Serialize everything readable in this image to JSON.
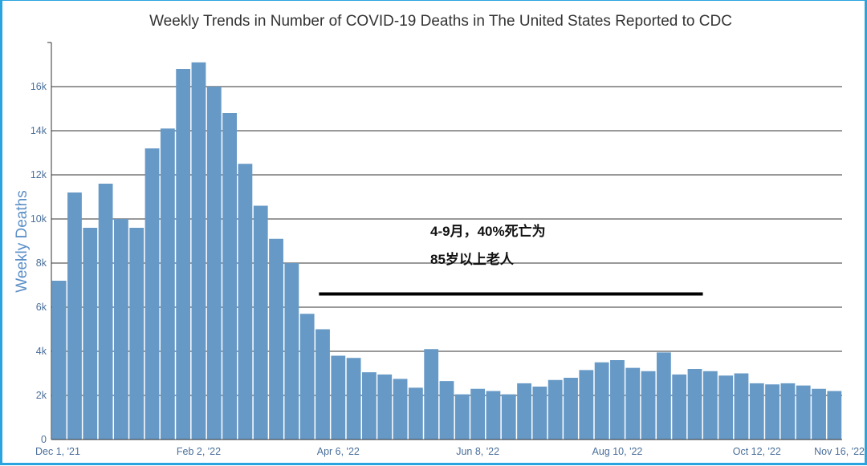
{
  "chart_data": {
    "type": "bar",
    "title": "Weekly Trends in Number of COVID-19 Deaths in The United States Reported to CDC",
    "xlabel": "",
    "ylabel": "Weekly Deaths",
    "ylim": [
      0,
      18000
    ],
    "yticks": [
      0,
      2000,
      4000,
      6000,
      8000,
      10000,
      12000,
      14000,
      16000
    ],
    "ytick_labels": [
      "0",
      "2k",
      "4k",
      "6k",
      "8k",
      "10k",
      "12k",
      "14k",
      "16k"
    ],
    "xtick_labels": [
      {
        "label": "Dec 1, '21",
        "index": 0
      },
      {
        "label": "Feb 2, '22",
        "index": 9
      },
      {
        "label": "Apr 6, '22",
        "index": 18
      },
      {
        "label": "Jun 8, '22",
        "index": 27
      },
      {
        "label": "Aug 10, '22",
        "index": 36
      },
      {
        "label": "Oct 12, '22",
        "index": 45
      },
      {
        "label": "Nov 16, '22",
        "index": 50
      }
    ],
    "bar_color": "#6799c6",
    "grid_color": "#333333",
    "values": [
      7200,
      11200,
      9600,
      11600,
      10000,
      9600,
      13200,
      14100,
      16800,
      17100,
      16000,
      14800,
      12500,
      10600,
      9100,
      8000,
      5700,
      5000,
      3800,
      3700,
      3050,
      2950,
      2750,
      2350,
      4100,
      2650,
      2050,
      2300,
      2200,
      2050,
      2550,
      2400,
      2700,
      2800,
      3150,
      3500,
      3600,
      3250,
      3100,
      3950,
      2950,
      3200,
      3100,
      2900,
      3000,
      2550,
      2500,
      2550,
      2450,
      2300,
      2200
    ],
    "annotation": {
      "lines": [
        "4-9月，40%死亡为",
        "85岁以上老人"
      ],
      "range_start_index": 17,
      "range_end_index": 41,
      "bracket_value": 6600
    }
  }
}
